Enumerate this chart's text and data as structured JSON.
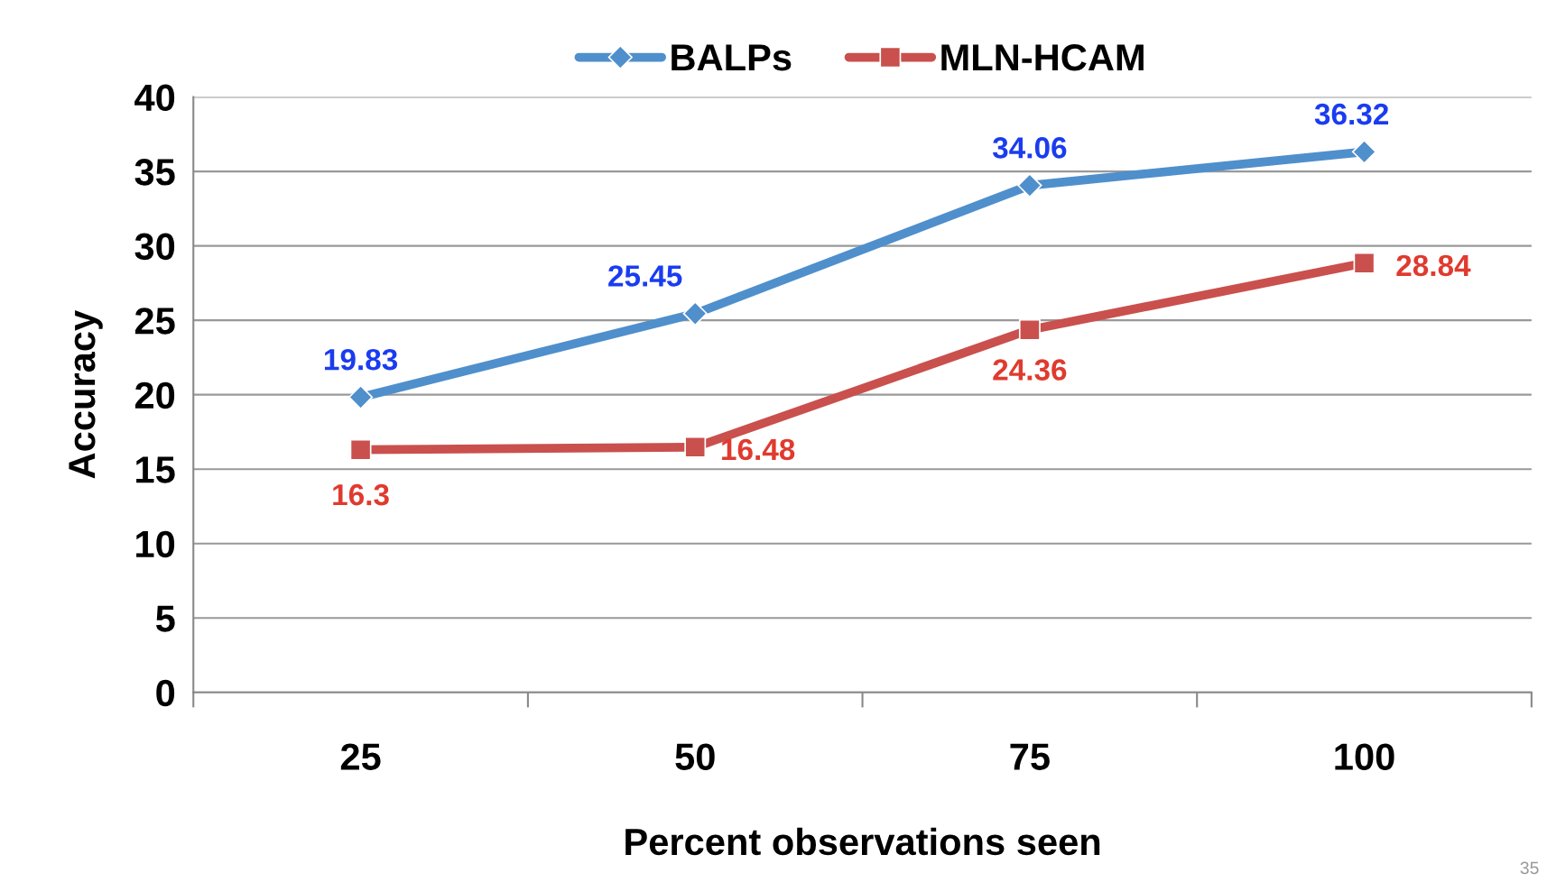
{
  "chart_data": {
    "type": "line",
    "xlabel": "Percent observations seen",
    "ylabel": "Accuracy",
    "categories": [
      "25",
      "50",
      "75",
      "100"
    ],
    "series": [
      {
        "name": "BALPs",
        "color": "#4f8fcc",
        "marker": "diamond",
        "values": [
          19.83,
          25.45,
          34.06,
          36.32
        ]
      },
      {
        "name": "MLN-HCAM",
        "color": "#c9504d",
        "marker": "square",
        "values": [
          16.3,
          16.48,
          24.36,
          28.84
        ]
      }
    ],
    "ylim": [
      0,
      40
    ],
    "yticks": [
      0,
      5,
      10,
      15,
      20,
      25,
      30,
      35,
      40
    ],
    "grid": "y",
    "legend": "top",
    "data_labels": true,
    "annotations": [
      "35"
    ]
  }
}
